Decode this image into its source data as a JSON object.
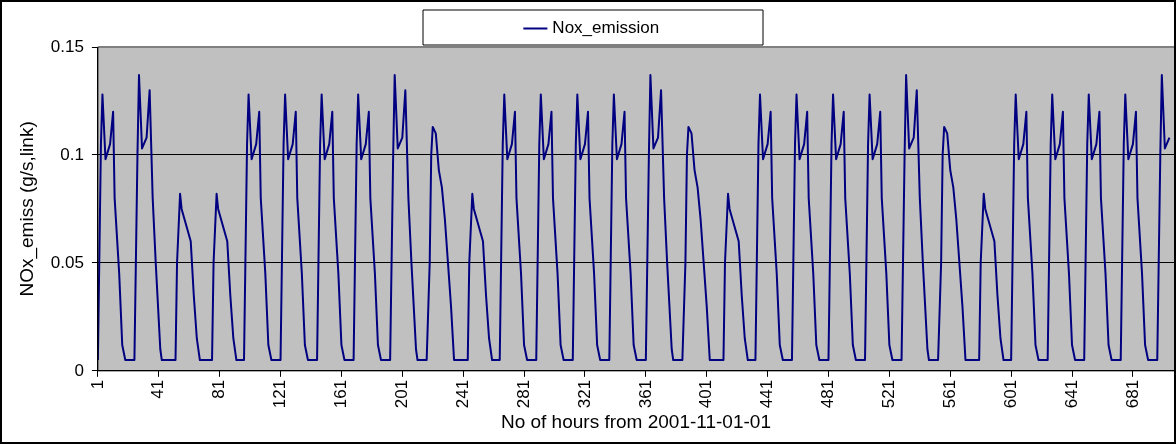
{
  "chart_data": {
    "type": "line",
    "xlabel": "No of hours from 2001-11-01-01",
    "ylabel": "NOx_emiss (g/s,link)",
    "xlim": [
      1,
      708
    ],
    "xticks": [
      1,
      41,
      81,
      121,
      161,
      201,
      241,
      281,
      321,
      361,
      401,
      441,
      481,
      521,
      561,
      601,
      641,
      681
    ],
    "ylim": [
      0,
      0.15
    ],
    "yticks": [
      0,
      0.05,
      0.1,
      0.15
    ],
    "grid": "y",
    "legend": "top",
    "marker": "none",
    "line_style": "solid",
    "series": [
      {
        "name": "Nox_emission",
        "color": "#000080",
        "x": [
          1,
          3,
          4,
          6,
          9,
          11,
          12,
          15,
          17,
          19,
          25,
          27,
          28,
          30,
          33,
          35,
          37,
          39,
          42,
          43,
          49,
          52,
          53,
          55,
          56,
          58,
          60,
          62,
          64,
          66,
          68,
          73,
          76,
          77,
          79,
          80,
          82,
          84,
          86,
          88,
          90,
          92,
          97,
          99,
          100,
          102,
          105,
          107,
          108,
          111,
          113,
          115,
          121,
          123,
          124,
          126,
          129,
          131,
          132,
          135,
          137,
          139,
          145,
          147,
          148,
          150,
          153,
          155,
          156,
          159,
          161,
          163,
          169,
          171,
          172,
          174,
          177,
          179,
          180,
          183,
          185,
          187,
          193,
          195,
          196,
          198,
          201,
          203,
          205,
          207,
          210,
          211,
          217,
          219,
          220,
          221,
          223,
          225,
          227,
          229,
          231,
          233,
          235,
          241,
          244,
          245,
          247,
          248,
          250,
          252,
          254,
          256,
          258,
          260,
          265,
          267,
          268,
          270,
          273,
          275,
          276,
          279,
          281,
          283,
          289,
          291,
          292,
          294,
          297,
          299,
          300,
          303,
          305,
          307,
          313,
          315,
          316,
          318,
          321,
          323,
          324,
          327,
          329,
          331,
          337,
          339,
          340,
          342,
          345,
          347,
          348,
          351,
          353,
          355,
          361,
          363,
          364,
          366,
          369,
          371,
          373,
          375,
          378,
          379,
          385,
          387,
          388,
          389,
          391,
          393,
          395,
          397,
          399,
          401,
          403,
          409,
          412,
          413,
          415,
          416,
          418,
          420,
          422,
          424,
          426,
          428,
          433,
          435,
          436,
          438,
          441,
          443,
          444,
          447,
          449,
          451,
          457,
          459,
          460,
          462,
          465,
          467,
          468,
          471,
          473,
          475,
          481,
          483,
          484,
          486,
          489,
          491,
          492,
          495,
          497,
          499,
          505,
          507,
          508,
          510,
          513,
          515,
          516,
          519,
          521,
          523,
          529,
          531,
          532,
          534,
          537,
          539,
          541,
          543,
          546,
          547,
          553,
          555,
          556,
          557,
          559,
          561,
          563,
          565,
          567,
          569,
          571,
          577,
          580,
          581,
          583,
          584,
          586,
          588,
          590,
          592,
          594,
          596,
          601,
          603,
          604,
          606,
          609,
          611,
          612,
          615,
          617,
          619,
          625,
          627,
          628,
          630,
          633,
          635,
          636,
          639,
          641,
          643,
          649,
          651,
          652,
          654,
          657,
          659,
          660,
          663,
          665,
          667,
          673,
          675,
          676,
          678,
          681,
          683,
          684,
          687,
          689,
          691,
          697,
          699,
          700,
          702,
          705
        ],
        "values": [
          0.005,
          0.105,
          0.128,
          0.098,
          0.105,
          0.12,
          0.08,
          0.045,
          0.012,
          0.005,
          0.005,
          0.1,
          0.137,
          0.103,
          0.108,
          0.13,
          0.08,
          0.05,
          0.01,
          0.005,
          0.005,
          0.005,
          0.05,
          0.082,
          0.075,
          0.07,
          0.065,
          0.06,
          0.035,
          0.015,
          0.005,
          0.005,
          0.005,
          0.05,
          0.082,
          0.075,
          0.07,
          0.065,
          0.06,
          0.035,
          0.015,
          0.005,
          0.005,
          0.105,
          0.128,
          0.098,
          0.105,
          0.12,
          0.08,
          0.045,
          0.012,
          0.005,
          0.005,
          0.105,
          0.128,
          0.098,
          0.105,
          0.12,
          0.08,
          0.045,
          0.012,
          0.005,
          0.005,
          0.105,
          0.128,
          0.098,
          0.105,
          0.12,
          0.08,
          0.045,
          0.012,
          0.005,
          0.005,
          0.105,
          0.128,
          0.098,
          0.105,
          0.12,
          0.08,
          0.045,
          0.012,
          0.005,
          0.005,
          0.1,
          0.137,
          0.103,
          0.108,
          0.13,
          0.08,
          0.05,
          0.01,
          0.005,
          0.005,
          0.05,
          0.1,
          0.113,
          0.11,
          0.093,
          0.085,
          0.07,
          0.05,
          0.03,
          0.005,
          0.005,
          0.005,
          0.05,
          0.082,
          0.075,
          0.07,
          0.065,
          0.06,
          0.035,
          0.015,
          0.005,
          0.005,
          0.105,
          0.128,
          0.098,
          0.105,
          0.12,
          0.08,
          0.045,
          0.012,
          0.005,
          0.005,
          0.105,
          0.128,
          0.098,
          0.105,
          0.12,
          0.08,
          0.045,
          0.012,
          0.005,
          0.005,
          0.105,
          0.128,
          0.098,
          0.105,
          0.12,
          0.08,
          0.045,
          0.012,
          0.005,
          0.005,
          0.105,
          0.128,
          0.098,
          0.105,
          0.12,
          0.08,
          0.045,
          0.012,
          0.005,
          0.005,
          0.1,
          0.137,
          0.103,
          0.108,
          0.13,
          0.08,
          0.05,
          0.01,
          0.005,
          0.005,
          0.05,
          0.1,
          0.113,
          0.11,
          0.093,
          0.085,
          0.07,
          0.05,
          0.03,
          0.005,
          0.005,
          0.005,
          0.05,
          0.082,
          0.075,
          0.07,
          0.065,
          0.06,
          0.035,
          0.015,
          0.005,
          0.005,
          0.105,
          0.128,
          0.098,
          0.105,
          0.12,
          0.08,
          0.045,
          0.012,
          0.005,
          0.005,
          0.105,
          0.128,
          0.098,
          0.105,
          0.12,
          0.08,
          0.045,
          0.012,
          0.005,
          0.005,
          0.105,
          0.128,
          0.098,
          0.105,
          0.12,
          0.08,
          0.045,
          0.012,
          0.005,
          0.005,
          0.105,
          0.128,
          0.098,
          0.105,
          0.12,
          0.08,
          0.045,
          0.012,
          0.005,
          0.005,
          0.1,
          0.137,
          0.103,
          0.108,
          0.13,
          0.08,
          0.05,
          0.01,
          0.005,
          0.005,
          0.05,
          0.1,
          0.113,
          0.11,
          0.093,
          0.085,
          0.07,
          0.05,
          0.03,
          0.005,
          0.005,
          0.005,
          0.05,
          0.082,
          0.075,
          0.07,
          0.065,
          0.06,
          0.035,
          0.015,
          0.005,
          0.005,
          0.105,
          0.128,
          0.098,
          0.105,
          0.12,
          0.08,
          0.045,
          0.012,
          0.005,
          0.005,
          0.105,
          0.128,
          0.098,
          0.105,
          0.12,
          0.08,
          0.045,
          0.012,
          0.005,
          0.005,
          0.105,
          0.128,
          0.098,
          0.105,
          0.12,
          0.08,
          0.045,
          0.012,
          0.005,
          0.005,
          0.105,
          0.128,
          0.098,
          0.105,
          0.12,
          0.08,
          0.045,
          0.012,
          0.005,
          0.005,
          0.1,
          0.137,
          0.103,
          0.108
        ]
      }
    ]
  }
}
